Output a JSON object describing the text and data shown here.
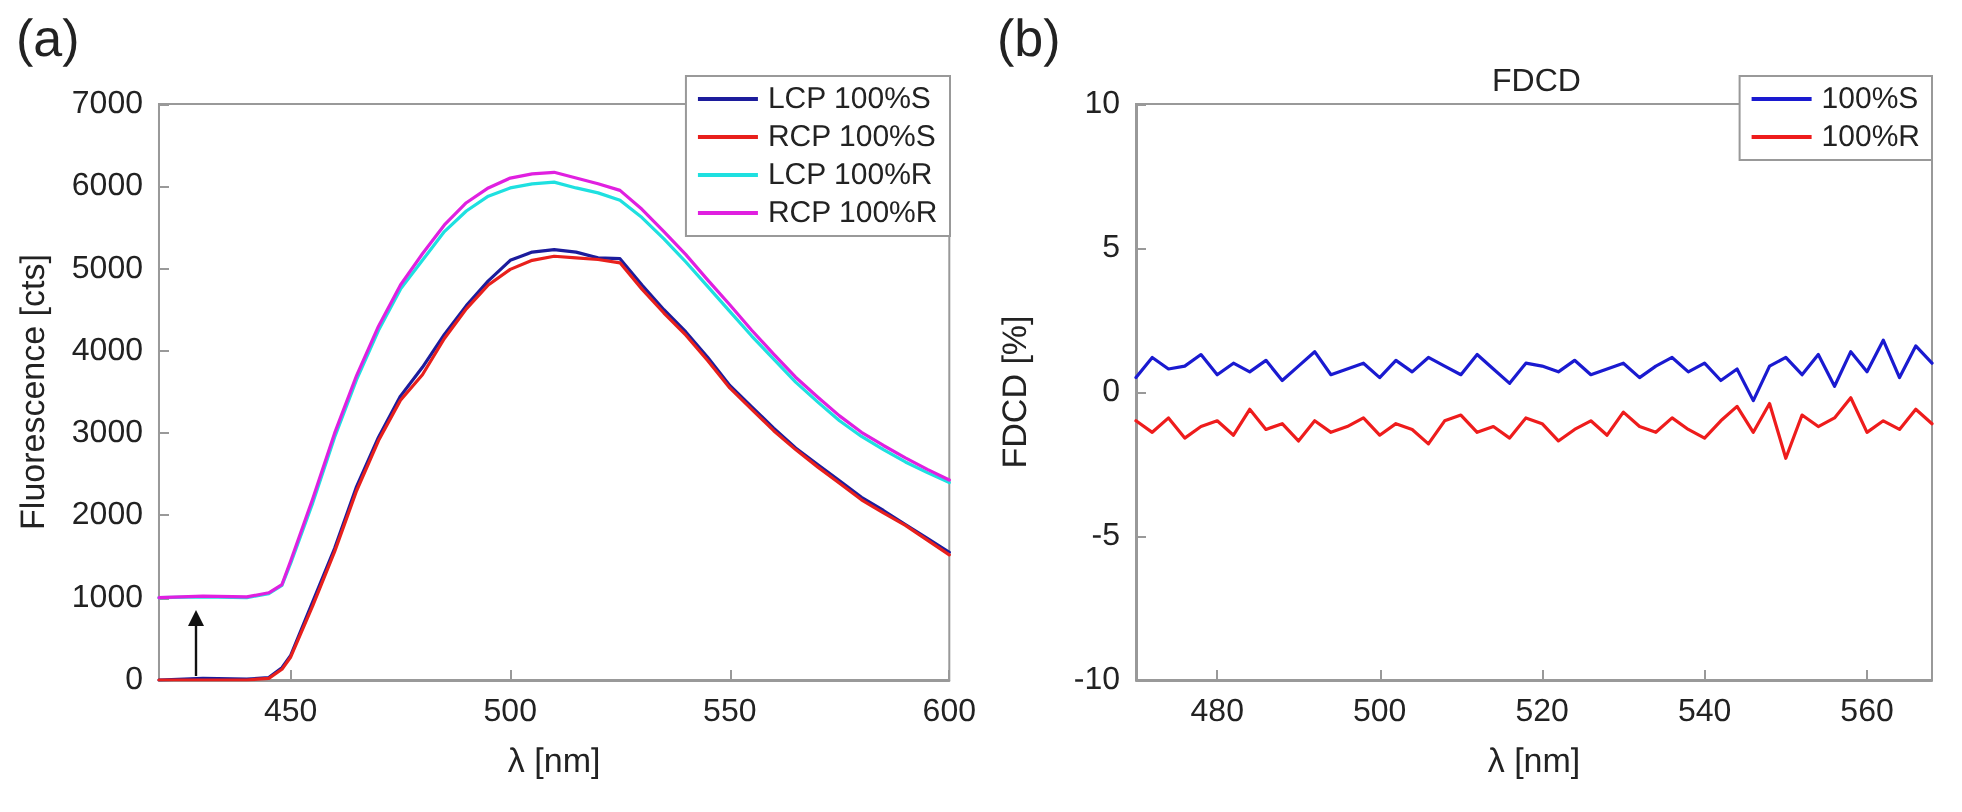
{
  "chart_data": [
    {
      "type": "line",
      "xlabel": "λ [nm]",
      "ylabel": "Fluorescence [cts]",
      "annotations": [
        "(a)"
      ],
      "xlim": [
        420,
        600
      ],
      "ylim": [
        0,
        7000
      ],
      "xticks": [
        450,
        500,
        550,
        600
      ],
      "yticks": [
        0,
        1000,
        2000,
        3000,
        4000,
        5000,
        6000,
        7000
      ],
      "grid": false,
      "legend": "top right",
      "marker": "none",
      "line_style": "solid",
      "x": [
        420,
        430,
        440,
        445,
        448,
        450,
        455,
        460,
        465,
        470,
        475,
        480,
        485,
        490,
        495,
        500,
        505,
        510,
        515,
        520,
        525,
        530,
        535,
        540,
        545,
        550,
        555,
        560,
        565,
        570,
        575,
        580,
        585,
        590,
        595,
        600
      ],
      "series": [
        {
          "name": "LCP 100%S",
          "color": "#1c1c9c",
          "values": [
            0,
            20,
            10,
            30,
            150,
            300,
            950,
            1600,
            2350,
            2950,
            3450,
            3800,
            4200,
            4550,
            4850,
            5100,
            5200,
            5230,
            5200,
            5130,
            5120,
            4800,
            4500,
            4230,
            3920,
            3580,
            3320,
            3060,
            2820,
            2620,
            2420,
            2220,
            2060,
            1890,
            1720,
            1550
          ]
        },
        {
          "name": "RCP 100%S",
          "color": "#e8201c",
          "values": [
            0,
            0,
            0,
            20,
            130,
            280,
            900,
            1560,
            2300,
            2910,
            3400,
            3710,
            4150,
            4510,
            4800,
            4990,
            5100,
            5150,
            5130,
            5110,
            5070,
            4750,
            4460,
            4190,
            3880,
            3550,
            3290,
            3030,
            2800,
            2590,
            2390,
            2190,
            2030,
            1880,
            1700,
            1520
          ]
        },
        {
          "name": "LCP 100%R",
          "color": "#1ee0e0",
          "values": [
            1000,
            1010,
            1000,
            1050,
            1150,
            1420,
            2150,
            2950,
            3650,
            4250,
            4750,
            5100,
            5450,
            5700,
            5880,
            5980,
            6030,
            6050,
            5980,
            5920,
            5830,
            5620,
            5360,
            5080,
            4780,
            4480,
            4180,
            3900,
            3620,
            3380,
            3150,
            2960,
            2800,
            2650,
            2520,
            2400
          ]
        },
        {
          "name": "RCP 100%R",
          "color": "#e020e0",
          "values": [
            1000,
            1020,
            1010,
            1060,
            1160,
            1450,
            2200,
            3000,
            3700,
            4300,
            4800,
            5180,
            5530,
            5800,
            5980,
            6100,
            6150,
            6170,
            6100,
            6030,
            5950,
            5720,
            5450,
            5170,
            4860,
            4560,
            4250,
            3960,
            3680,
            3440,
            3210,
            3010,
            2850,
            2700,
            2560,
            2430
          ]
        }
      ]
    },
    {
      "type": "line",
      "title": "FDCD",
      "xlabel": "λ [nm]",
      "ylabel": "FDCD [%]",
      "annotations": [
        "(b)"
      ],
      "xlim": [
        470,
        568
      ],
      "ylim": [
        -10,
        10
      ],
      "xticks": [
        480,
        500,
        520,
        540,
        560
      ],
      "yticks": [
        -10,
        -5,
        0,
        5,
        10
      ],
      "grid": false,
      "legend": "top right",
      "marker": "none",
      "line_style": "solid",
      "x": [
        470,
        472,
        474,
        476,
        478,
        480,
        482,
        484,
        486,
        488,
        490,
        492,
        494,
        496,
        498,
        500,
        502,
        504,
        506,
        508,
        510,
        512,
        514,
        516,
        518,
        520,
        522,
        524,
        526,
        528,
        530,
        532,
        534,
        536,
        538,
        540,
        542,
        544,
        546,
        548,
        550,
        552,
        554,
        556,
        558,
        560,
        562,
        564,
        566,
        568
      ],
      "series": [
        {
          "name": "100%S",
          "color": "#1a1ad0",
          "values": [
            0.5,
            1.2,
            0.8,
            0.9,
            1.3,
            0.6,
            1.0,
            0.7,
            1.1,
            0.4,
            0.9,
            1.4,
            0.6,
            0.8,
            1.0,
            0.5,
            1.1,
            0.7,
            1.2,
            0.9,
            0.6,
            1.3,
            0.8,
            0.3,
            1.0,
            0.9,
            0.7,
            1.1,
            0.6,
            0.8,
            1.0,
            0.5,
            0.9,
            1.2,
            0.7,
            1.0,
            0.4,
            0.8,
            -0.3,
            0.9,
            1.2,
            0.6,
            1.3,
            0.2,
            1.4,
            0.7,
            1.8,
            0.5,
            1.6,
            1.0
          ]
        },
        {
          "name": "100%R",
          "color": "#ee1c1c",
          "values": [
            -1.0,
            -1.4,
            -0.9,
            -1.6,
            -1.2,
            -1.0,
            -1.5,
            -0.6,
            -1.3,
            -1.1,
            -1.7,
            -1.0,
            -1.4,
            -1.2,
            -0.9,
            -1.5,
            -1.1,
            -1.3,
            -1.8,
            -1.0,
            -0.8,
            -1.4,
            -1.2,
            -1.6,
            -0.9,
            -1.1,
            -1.7,
            -1.3,
            -1.0,
            -1.5,
            -0.7,
            -1.2,
            -1.4,
            -0.9,
            -1.3,
            -1.6,
            -1.0,
            -0.5,
            -1.4,
            -0.4,
            -2.3,
            -0.8,
            -1.2,
            -0.9,
            -0.2,
            -1.4,
            -1.0,
            -1.3,
            -0.6,
            -1.1
          ]
        }
      ]
    }
  ]
}
